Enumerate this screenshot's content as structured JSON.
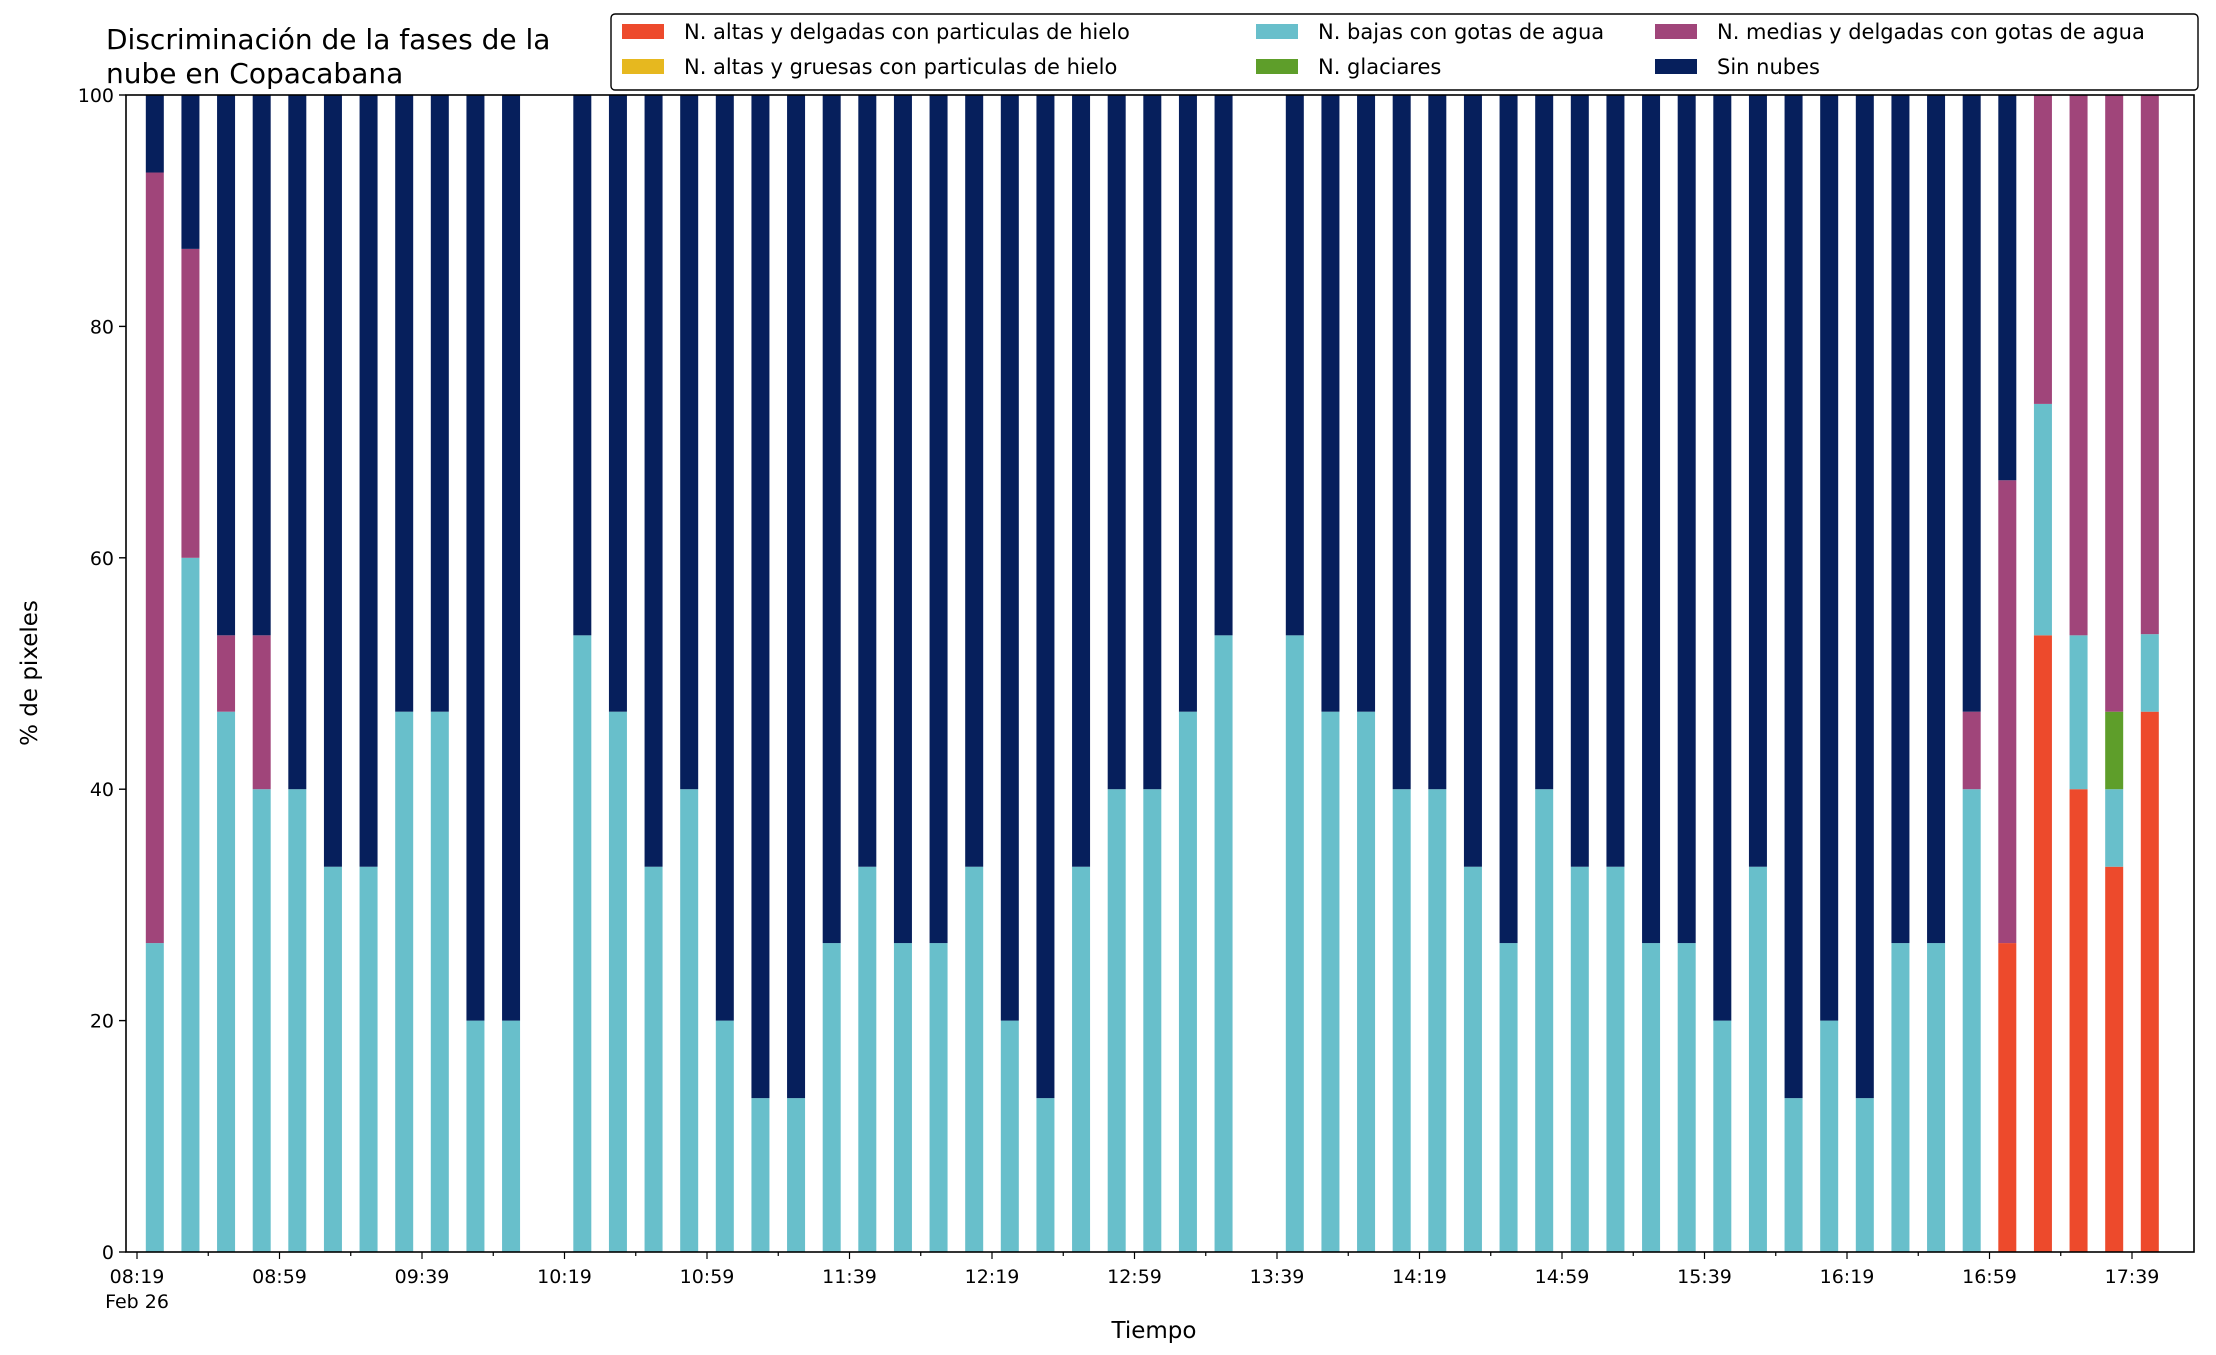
{
  "chart_data": {
    "type": "bar",
    "stacked": true,
    "title_lines": [
      "Discriminación de la fases de la",
      "nube en Copacabana"
    ],
    "xlabel": "Tiempo",
    "ylabel": "% de pixeles",
    "ylim": [
      0,
      100
    ],
    "yticks": [
      "0",
      "20",
      "40",
      "60",
      "80",
      "100"
    ],
    "xtick_labels": [
      "08:19",
      "08:59",
      "09:39",
      "10:19",
      "10:59",
      "11:39",
      "12:19",
      "12:59",
      "13:39",
      "14:19",
      "14:59",
      "15:39",
      "16:19",
      "16:59",
      "17:39"
    ],
    "xtick_sublabel": "Feb 26",
    "grid": false,
    "legend_position": "top-right",
    "x_start": "08:19",
    "x_step_minutes": 10,
    "x": [
      "08:24",
      "08:34",
      "08:44",
      "08:54",
      "09:04",
      "09:14",
      "09:24",
      "09:34",
      "09:44",
      "09:54",
      "10:04",
      "10:14",
      "10:24",
      "10:34",
      "10:44",
      "10:54",
      "11:04",
      "11:14",
      "11:24",
      "11:34",
      "11:44",
      "11:54",
      "12:04",
      "12:14",
      "12:24",
      "12:34",
      "12:44",
      "12:54",
      "13:04",
      "13:14",
      "13:24",
      "13:34",
      "13:44",
      "13:54",
      "14:04",
      "14:14",
      "14:24",
      "14:34",
      "14:44",
      "14:54",
      "15:04",
      "15:14",
      "15:24",
      "15:34",
      "15:44",
      "15:54",
      "16:04",
      "16:14",
      "16:24",
      "16:34",
      "16:44",
      "16:54",
      "17:04",
      "17:14",
      "17:24",
      "17:34",
      "17:44"
    ],
    "series": [
      {
        "name": "N. altas y delgadas con particulas de hielo",
        "color": "#ed4a2c",
        "values": [
          0,
          0,
          0,
          0,
          0,
          0,
          0,
          0,
          0,
          0,
          0,
          null,
          0,
          0,
          0,
          0,
          0,
          0,
          0,
          0,
          0,
          0,
          0,
          0,
          0,
          0,
          0,
          0,
          0,
          0,
          0,
          null,
          0,
          0,
          0,
          0,
          0,
          0,
          0,
          0,
          0,
          0,
          0,
          0,
          0,
          0,
          0,
          0,
          0,
          0,
          0,
          0,
          26.7,
          53.3,
          40,
          33.3,
          46.7
        ]
      },
      {
        "name": "N. altas y gruesas con particulas de hielo",
        "color": "#e6b81f",
        "values": [
          0,
          0,
          0,
          0,
          0,
          0,
          0,
          0,
          0,
          0,
          0,
          null,
          0,
          0,
          0,
          0,
          0,
          0,
          0,
          0,
          0,
          0,
          0,
          0,
          0,
          0,
          0,
          0,
          0,
          0,
          0,
          null,
          0,
          0,
          0,
          0,
          0,
          0,
          0,
          0,
          0,
          0,
          0,
          0,
          0,
          0,
          0,
          0,
          0,
          0,
          0,
          0,
          0,
          0,
          0,
          0,
          0
        ]
      },
      {
        "name": "N. bajas con gotas de agua",
        "color": "#68bfcb",
        "values": [
          26.7,
          60,
          46.7,
          40,
          40,
          33.3,
          33.3,
          46.7,
          46.7,
          20,
          20,
          null,
          53.3,
          46.7,
          33.3,
          40,
          20,
          13.3,
          13.3,
          26.7,
          33.3,
          26.7,
          26.7,
          33.3,
          20,
          13.3,
          33.3,
          40,
          40,
          46.7,
          53.3,
          null,
          53.3,
          46.7,
          46.7,
          40,
          40,
          33.3,
          26.7,
          40,
          33.3,
          33.3,
          26.7,
          26.7,
          20,
          33.3,
          13.3,
          20,
          13.3,
          26.7,
          26.7,
          40,
          0,
          20,
          13.3,
          6.7,
          6.7
        ]
      },
      {
        "name": "N. glaciares",
        "color": "#5e9e2a",
        "values": [
          0,
          0,
          0,
          0,
          0,
          0,
          0,
          0,
          0,
          0,
          0,
          null,
          0,
          0,
          0,
          0,
          0,
          0,
          0,
          0,
          0,
          0,
          0,
          0,
          0,
          0,
          0,
          0,
          0,
          0,
          0,
          null,
          0,
          0,
          0,
          0,
          0,
          0,
          0,
          0,
          0,
          0,
          0,
          0,
          0,
          0,
          0,
          0,
          0,
          0,
          0,
          0,
          0,
          0,
          0,
          6.7,
          0
        ]
      },
      {
        "name": "N. medias y delgadas con gotas de agua",
        "color": "#a0457a",
        "values": [
          66.6,
          26.7,
          6.6,
          13.3,
          0,
          0,
          0,
          0,
          0,
          0,
          0,
          null,
          0,
          0,
          0,
          0,
          0,
          0,
          0,
          0,
          0,
          0,
          0,
          0,
          0,
          0,
          0,
          0,
          0,
          0,
          0,
          null,
          0,
          0,
          0,
          0,
          0,
          0,
          0,
          0,
          0,
          0,
          0,
          0,
          0,
          0,
          0,
          0,
          0,
          0,
          0,
          6.7,
          40,
          26.7,
          46.7,
          53.3,
          46.6
        ]
      },
      {
        "name": "Sin nubes",
        "color": "#061f5c",
        "values": [
          6.7,
          13.3,
          46.7,
          46.7,
          60,
          66.7,
          66.7,
          53.3,
          53.3,
          80,
          80,
          null,
          46.7,
          53.3,
          66.7,
          60,
          80,
          86.7,
          86.7,
          73.3,
          66.7,
          73.3,
          73.3,
          66.7,
          80,
          86.7,
          66.7,
          60,
          60,
          53.3,
          46.7,
          null,
          46.7,
          53.3,
          53.3,
          60,
          60,
          66.7,
          73.3,
          60,
          66.7,
          66.7,
          73.3,
          73.3,
          80,
          66.7,
          86.7,
          80,
          86.7,
          73.3,
          73.3,
          53.3,
          33.3,
          0,
          0,
          0,
          0
        ]
      }
    ]
  }
}
